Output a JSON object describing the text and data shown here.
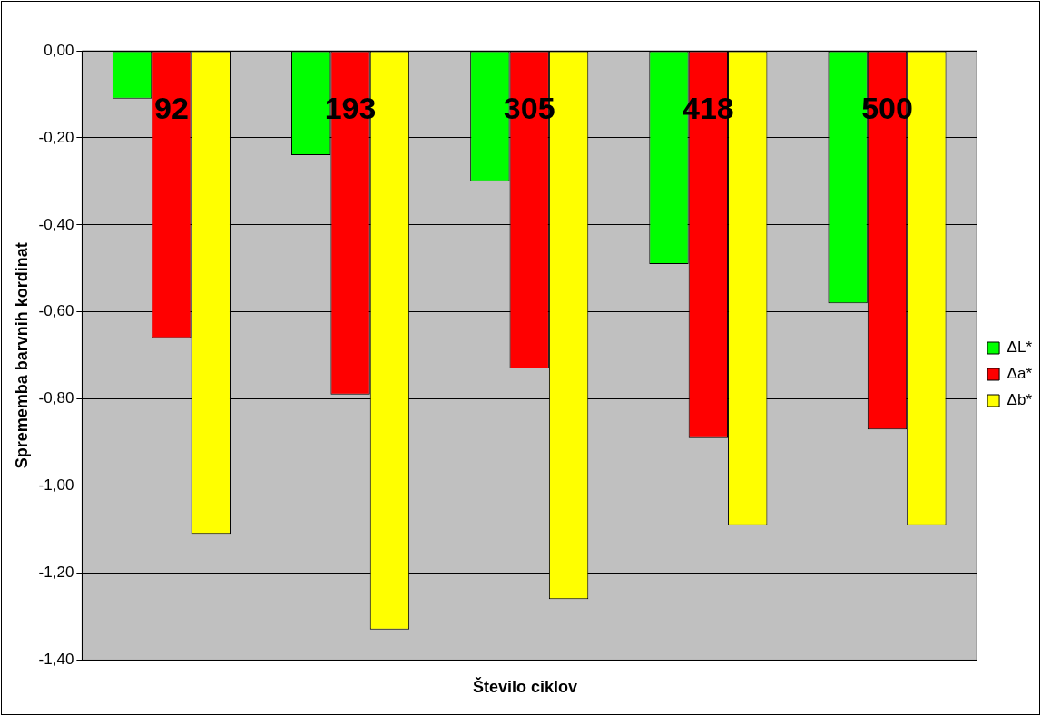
{
  "chart_data": {
    "type": "bar",
    "xlabel": "Število ciklov",
    "ylabel": "Sprememba barvnih kordinat",
    "categories": [
      "92",
      "193",
      "305",
      "418",
      "500"
    ],
    "series": [
      {
        "name": "ΔL*",
        "color": "#00ff00",
        "values": [
          -0.11,
          -0.24,
          -0.3,
          -0.49,
          -0.58
        ]
      },
      {
        "name": "Δa*",
        "color": "#ff0000",
        "values": [
          -0.66,
          -0.79,
          -0.73,
          -0.89,
          -0.87
        ]
      },
      {
        "name": "Δb*",
        "color": "#ffff00",
        "values": [
          -1.11,
          -1.33,
          -1.26,
          -1.09,
          -1.09
        ]
      }
    ],
    "ylim": [
      -1.4,
      0
    ],
    "yticks": [
      {
        "value": -1.4,
        "label": "-1,40"
      },
      {
        "value": -1.2,
        "label": "-1,20"
      },
      {
        "value": -1.0,
        "label": "-1,00"
      },
      {
        "value": -0.8,
        "label": "-0,80"
      },
      {
        "value": -0.6,
        "label": "-0,60"
      },
      {
        "value": -0.4,
        "label": "-0,40"
      },
      {
        "value": -0.2,
        "label": "-0,20"
      },
      {
        "value": 0,
        "label": "0,00"
      }
    ],
    "grid": "y",
    "legend": "right"
  }
}
